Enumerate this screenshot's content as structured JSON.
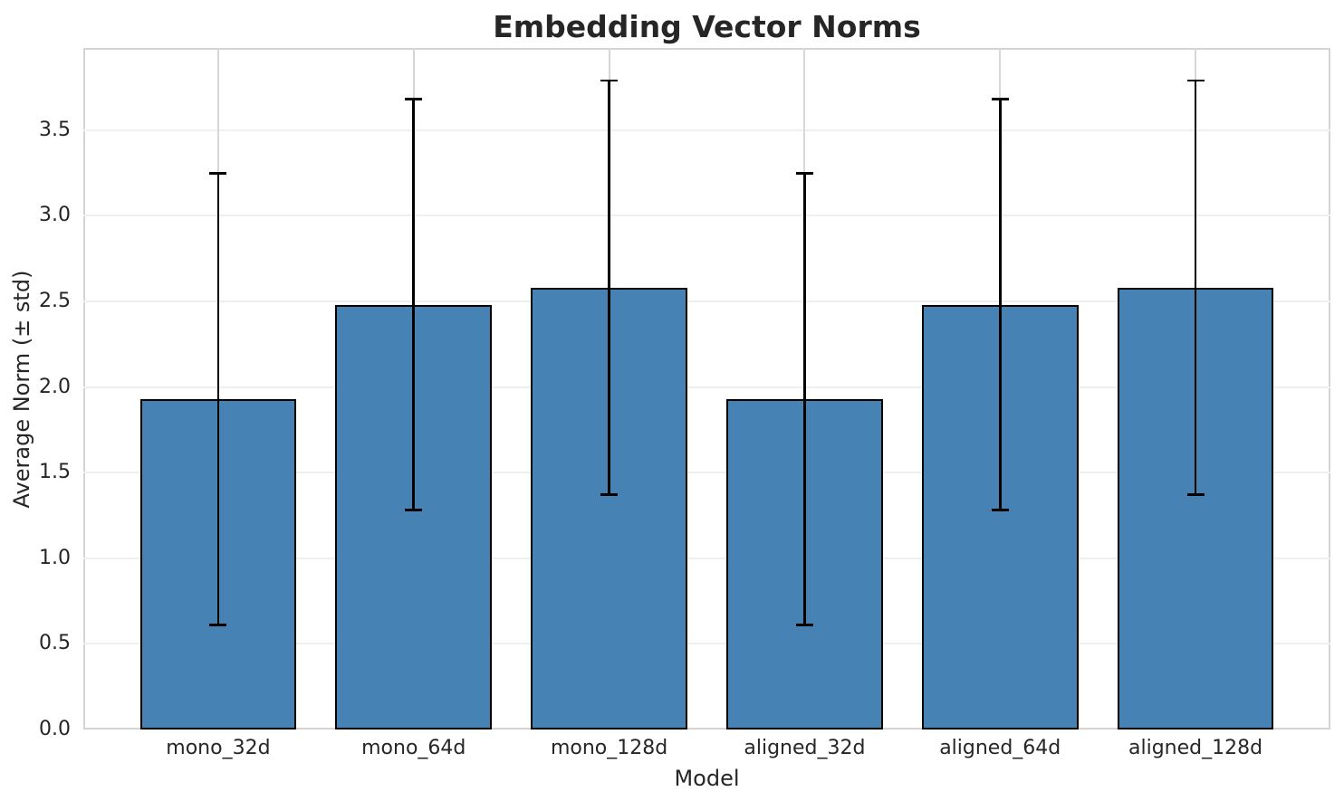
{
  "chart_data": {
    "type": "bar",
    "title": "Embedding Vector Norms",
    "xlabel": "Model",
    "ylabel": "Average Norm (± std)",
    "categories": [
      "mono_32d",
      "mono_64d",
      "mono_128d",
      "aligned_32d",
      "aligned_64d",
      "aligned_128d"
    ],
    "series": [
      {
        "name": "Average Norm (± std)",
        "values": [
          1.93,
          2.48,
          2.58,
          1.93,
          2.48,
          2.58
        ],
        "errors": [
          1.32,
          1.2,
          1.21,
          1.32,
          1.2,
          1.21
        ]
      }
    ],
    "error_bars": {
      "upper": [
        3.25,
        3.68,
        3.79,
        3.25,
        3.68,
        3.79
      ],
      "lower": [
        0.61,
        1.28,
        1.37,
        0.61,
        1.28,
        1.37
      ]
    },
    "ylim": [
      0,
      3.98
    ],
    "y_ticks": [
      0,
      0.5,
      1,
      1.5,
      2,
      2.5,
      3,
      3.5
    ],
    "y_tick_labels": [
      "0.0",
      "0.5",
      "1.0",
      "1.5",
      "2.0",
      "2.5",
      "3.0",
      "3.5"
    ],
    "grid": true,
    "legend": "none",
    "colors": {
      "bar_fill": "#4682b4",
      "bar_edge": "#000000",
      "error_bar": "#000000",
      "grid_horizontal": "#efefef",
      "grid_vertical": "#d7d7d7",
      "spine": "#d4d4d4",
      "text": "#262626",
      "background": "#ffffff"
    }
  }
}
